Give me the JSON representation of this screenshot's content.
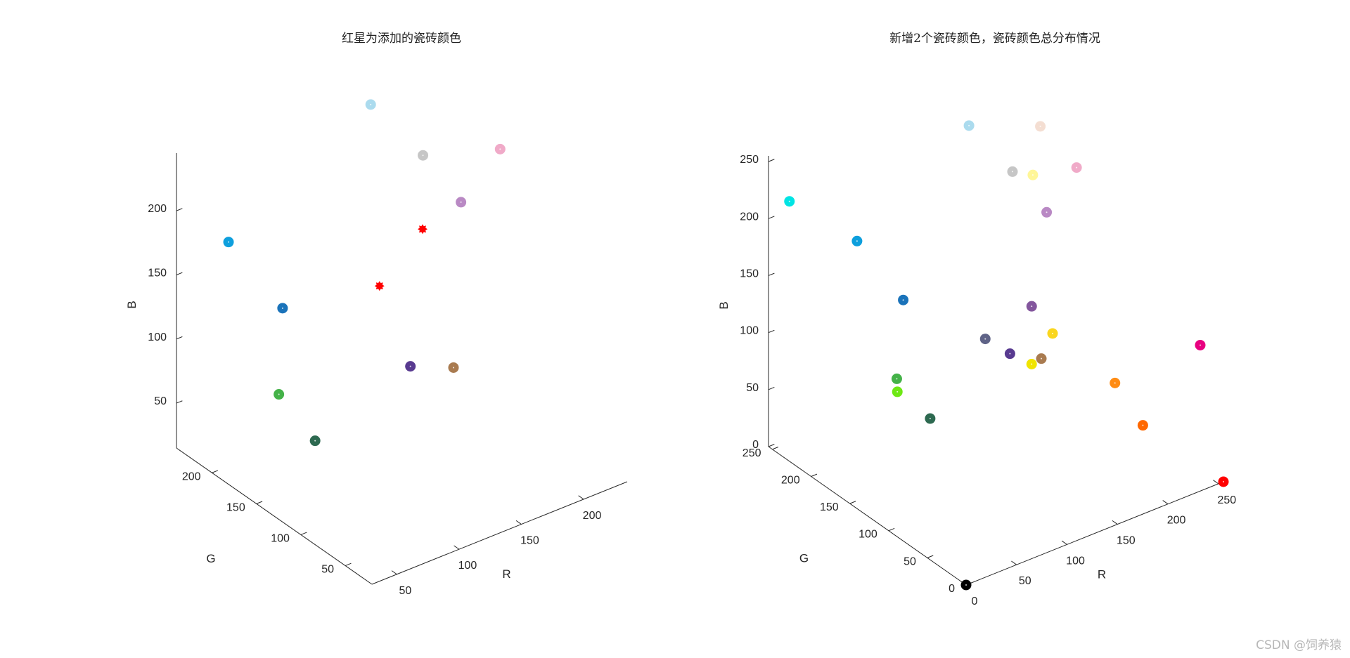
{
  "watermark": "CSDN @饲养猿",
  "chart_data": [
    {
      "type": "scatter3d",
      "title": "红星为添加的瓷砖颜色",
      "xlabel": "R",
      "ylabel": "G",
      "zlabel": "B",
      "xticks": [
        50,
        100,
        150,
        200
      ],
      "yticks": [
        50,
        100,
        150,
        200
      ],
      "zticks": [
        50,
        100,
        150,
        200
      ],
      "xlim": [
        30,
        235
      ],
      "ylim": [
        20,
        240
      ],
      "zlim": [
        15,
        245
      ],
      "points": [
        {
          "rgb": [
            171,
            219,
            238
          ],
          "color": "#abdbee"
        },
        {
          "rgb": [
            198,
            198,
            198
          ],
          "color": "#c6c6c6"
        },
        {
          "rgb": [
            240,
            170,
            200
          ],
          "color": "#f0aac8"
        },
        {
          "rgb": [
            185,
            137,
            196
          ],
          "color": "#b989c4"
        },
        {
          "rgb": [
            14,
            159,
            221
          ],
          "color": "#0e9fdd"
        },
        {
          "rgb": [
            26,
            115,
            186
          ],
          "color": "#1a73ba"
        },
        {
          "rgb": [
            88,
            58,
            144
          ],
          "color": "#583a90"
        },
        {
          "rgb": [
            169,
            123,
            80
          ],
          "color": "#a97b50"
        },
        {
          "rgb": [
            68,
            178,
            72
          ],
          "color": "#44b248"
        },
        {
          "rgb": [
            45,
            105,
            80
          ],
          "color": "#2d6950"
        }
      ],
      "added": [
        {
          "rgb": [
            131,
            153,
            144
          ],
          "color": "#ff0000"
        },
        {
          "rgb": [
            172,
            162,
            168
          ],
          "color": "#ff0000"
        }
      ]
    },
    {
      "type": "scatter3d",
      "title": "新增2个瓷砖颜色，瓷砖颜色总分布情况",
      "xlabel": "R",
      "ylabel": "G",
      "zlabel": "B",
      "xticks": [
        0,
        50,
        100,
        150,
        200,
        250
      ],
      "yticks": [
        0,
        50,
        100,
        150,
        200,
        250
      ],
      "zticks": [
        0,
        50,
        100,
        150,
        200,
        250
      ],
      "xlim": [
        0,
        255
      ],
      "ylim": [
        0,
        255
      ],
      "zlim": [
        0,
        255
      ],
      "points": [
        {
          "rgb": [
            171,
            219,
            238
          ],
          "color": "#abdbee"
        },
        {
          "rgb": [
            244,
            222,
            210
          ],
          "color": "#f4ded2"
        },
        {
          "rgb": [
            255,
            246,
            152
          ],
          "color": "#fff698"
        },
        {
          "rgb": [
            240,
            170,
            200
          ],
          "color": "#f0aac8"
        },
        {
          "rgb": [
            198,
            198,
            198
          ],
          "color": "#c6c6c6"
        },
        {
          "rgb": [
            185,
            137,
            196
          ],
          "color": "#b989c4"
        },
        {
          "rgb": [
            0,
            228,
            228
          ],
          "color": "#00e4e4"
        },
        {
          "rgb": [
            14,
            159,
            221
          ],
          "color": "#0e9fdd"
        },
        {
          "rgb": [
            26,
            115,
            186
          ],
          "color": "#1a73ba"
        },
        {
          "rgb": [
            95,
            99,
            135
          ],
          "color": "#5f6387"
        },
        {
          "rgb": [
            131,
            86,
            157
          ],
          "color": "#83569d"
        },
        {
          "rgb": [
            250,
            214,
            30
          ],
          "color": "#fad61e"
        },
        {
          "rgb": [
            88,
            58,
            144
          ],
          "color": "#583a90"
        },
        {
          "rgb": [
            240,
            228,
            0
          ],
          "color": "#f0e400"
        },
        {
          "rgb": [
            169,
            123,
            80
          ],
          "color": "#a97b50"
        },
        {
          "rgb": [
            232,
            0,
            128
          ],
          "color": "#e80080"
        },
        {
          "rgb": [
            68,
            178,
            72
          ],
          "color": "#44b248"
        },
        {
          "rgb": [
            110,
            232,
            20
          ],
          "color": "#6ee814"
        },
        {
          "rgb": [
            45,
            105,
            80
          ],
          "color": "#2d6950"
        },
        {
          "rgb": [
            255,
            140,
            20
          ],
          "color": "#ff8c14"
        },
        {
          "rgb": [
            255,
            104,
            0
          ],
          "color": "#ff6800"
        },
        {
          "rgb": [
            255,
            0,
            0
          ],
          "color": "#ff0000"
        },
        {
          "rgb": [
            0,
            0,
            0
          ],
          "color": "#000000"
        }
      ]
    }
  ]
}
